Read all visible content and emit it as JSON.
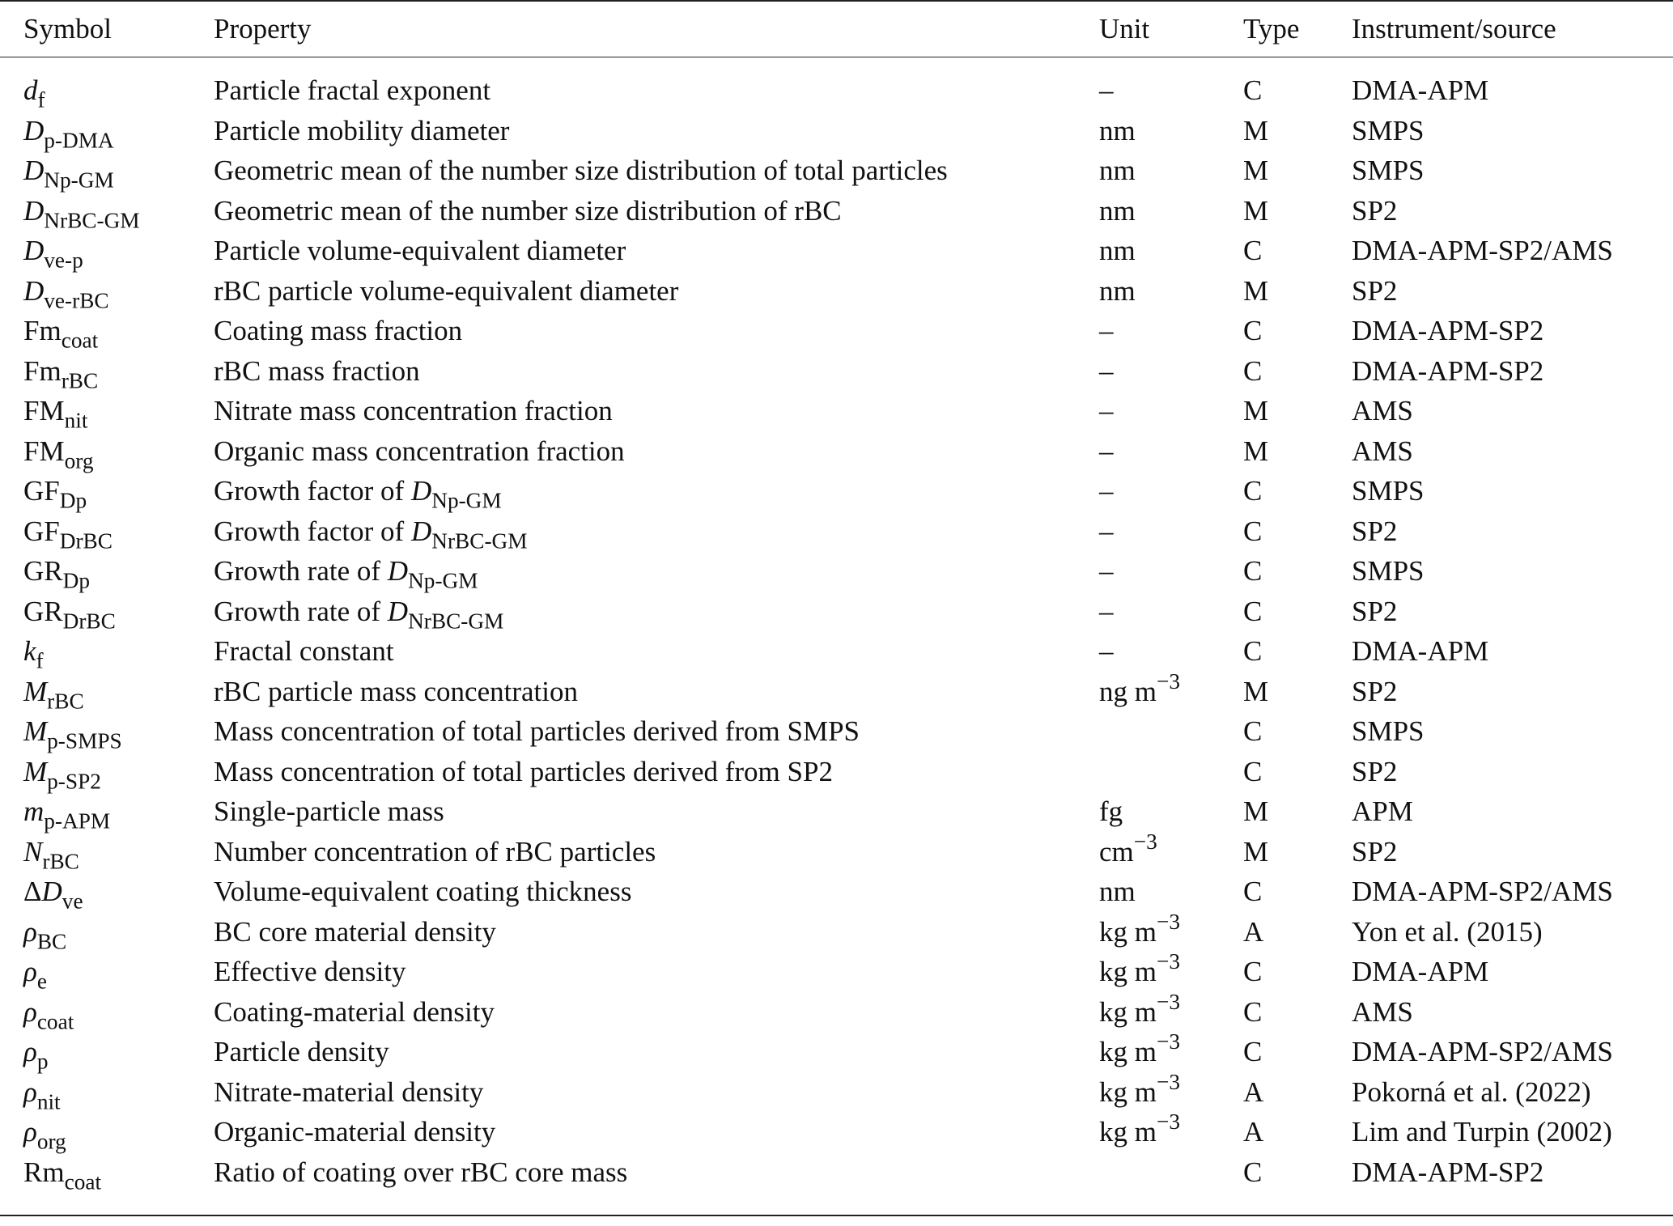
{
  "table": {
    "columns": [
      "Symbol",
      "Property",
      "Unit",
      "Type",
      "Instrument/source"
    ],
    "rows": [
      {
        "symbol": [
          {
            "i": "d"
          },
          {
            "sub": "f"
          }
        ],
        "property": "Particle fractal exponent",
        "unit": "–",
        "type": "C",
        "source": "DMA-APM"
      },
      {
        "symbol": [
          {
            "i": "D"
          },
          {
            "sub": "p-DMA"
          }
        ],
        "property": "Particle mobility diameter",
        "unit": "nm",
        "type": "M",
        "source": "SMPS"
      },
      {
        "symbol": [
          {
            "i": "D"
          },
          {
            "sub": "Np-GM"
          }
        ],
        "property": "Geometric mean of the number size distribution of total particles",
        "unit": "nm",
        "type": "M",
        "source": "SMPS"
      },
      {
        "symbol": [
          {
            "i": "D"
          },
          {
            "sub": "NrBC-GM"
          }
        ],
        "property": "Geometric mean of the number size distribution of rBC",
        "unit": "nm",
        "type": "M",
        "source": "SP2"
      },
      {
        "symbol": [
          {
            "i": "D"
          },
          {
            "sub": "ve-p"
          }
        ],
        "property": "Particle volume-equivalent diameter",
        "unit": "nm",
        "type": "C",
        "source": "DMA-APM-SP2/AMS"
      },
      {
        "symbol": [
          {
            "i": "D"
          },
          {
            "sub": "ve-rBC"
          }
        ],
        "property": "rBC particle volume-equivalent diameter",
        "unit": "nm",
        "type": "M",
        "source": "SP2"
      },
      {
        "symbol": [
          "Fm",
          {
            "sub": "coat"
          }
        ],
        "property": "Coating mass fraction",
        "unit": "–",
        "type": "C",
        "source": "DMA-APM-SP2"
      },
      {
        "symbol": [
          "Fm",
          {
            "sub": "rBC"
          }
        ],
        "property": "rBC mass fraction",
        "unit": "–",
        "type": "C",
        "source": "DMA-APM-SP2"
      },
      {
        "symbol": [
          "FM",
          {
            "sub": "nit"
          }
        ],
        "property": "Nitrate mass concentration fraction",
        "unit": "–",
        "type": "M",
        "source": "AMS"
      },
      {
        "symbol": [
          "FM",
          {
            "sub": "org"
          }
        ],
        "property": "Organic mass concentration fraction",
        "unit": "–",
        "type": "M",
        "source": "AMS"
      },
      {
        "symbol": [
          "GF",
          {
            "sub": "Dp"
          }
        ],
        "property": [
          "Growth factor of ",
          {
            "i": "D"
          },
          {
            "sub": "Np-GM"
          }
        ],
        "unit": "–",
        "type": "C",
        "source": "SMPS"
      },
      {
        "symbol": [
          "GF",
          {
            "sub": "DrBC"
          }
        ],
        "property": [
          "Growth factor of ",
          {
            "i": "D"
          },
          {
            "sub": "NrBC-GM"
          }
        ],
        "unit": "–",
        "type": "C",
        "source": "SP2"
      },
      {
        "symbol": [
          "GR",
          {
            "sub": "Dp"
          }
        ],
        "property": [
          "Growth rate of ",
          {
            "i": "D"
          },
          {
            "sub": "Np-GM"
          }
        ],
        "unit": "–",
        "type": "C",
        "source": "SMPS"
      },
      {
        "symbol": [
          "GR",
          {
            "sub": "DrBC"
          }
        ],
        "property": [
          "Growth rate of ",
          {
            "i": "D"
          },
          {
            "sub": "NrBC-GM"
          }
        ],
        "unit": "–",
        "type": "C",
        "source": "SP2"
      },
      {
        "symbol": [
          {
            "i": "k"
          },
          {
            "sub": "f"
          }
        ],
        "property": "Fractal constant",
        "unit": "–",
        "type": "C",
        "source": "DMA-APM"
      },
      {
        "symbol": [
          {
            "i": "M"
          },
          {
            "sub": "rBC"
          }
        ],
        "property": "rBC particle mass concentration",
        "unit": [
          "ng m",
          {
            "sup": "−3"
          }
        ],
        "type": "M",
        "source": "SP2"
      },
      {
        "symbol": [
          {
            "i": "M"
          },
          {
            "sub": "p-SMPS"
          }
        ],
        "property": "Mass concentration of total particles derived from SMPS",
        "unit": null,
        "type": "C",
        "source": "SMPS"
      },
      {
        "symbol": [
          {
            "i": "M"
          },
          {
            "sub": "p-SP2"
          }
        ],
        "property": "Mass concentration of total particles derived from SP2",
        "unit": null,
        "type": "C",
        "source": "SP2"
      },
      {
        "symbol": [
          {
            "i": "m"
          },
          {
            "sub": "p-APM"
          }
        ],
        "property": "Single-particle mass",
        "unit": "fg",
        "type": "M",
        "source": "APM"
      },
      {
        "symbol": [
          {
            "i": "N"
          },
          {
            "sub": "rBC"
          }
        ],
        "property": "Number concentration of rBC particles",
        "unit": [
          "cm",
          {
            "sup": "−3"
          }
        ],
        "type": "M",
        "source": "SP2"
      },
      {
        "symbol": [
          "Δ",
          {
            "i": "D"
          },
          {
            "sub": "ve"
          }
        ],
        "property": "Volume-equivalent coating thickness",
        "unit": "nm",
        "type": "C",
        "source": "DMA-APM-SP2/AMS"
      },
      {
        "symbol": [
          {
            "i": "ρ"
          },
          {
            "sub": "BC"
          }
        ],
        "property": "BC core material density",
        "unit": [
          "kg m",
          {
            "sup": "−3"
          }
        ],
        "type": "A",
        "source": "Yon et al. (2015)"
      },
      {
        "symbol": [
          {
            "i": "ρ"
          },
          {
            "sub": "e"
          }
        ],
        "property": "Effective density",
        "unit": [
          "kg m",
          {
            "sup": "−3"
          }
        ],
        "type": "C",
        "source": "DMA-APM"
      },
      {
        "symbol": [
          {
            "i": "ρ"
          },
          {
            "sub": "coat"
          }
        ],
        "property": "Coating-material density",
        "unit": [
          "kg m",
          {
            "sup": "−3"
          }
        ],
        "type": "C",
        "source": "AMS"
      },
      {
        "symbol": [
          {
            "i": "ρ"
          },
          {
            "sub": "p"
          }
        ],
        "property": "Particle density",
        "unit": [
          "kg m",
          {
            "sup": "−3"
          }
        ],
        "type": "C",
        "source": "DMA-APM-SP2/AMS"
      },
      {
        "symbol": [
          {
            "i": "ρ"
          },
          {
            "sub": "nit"
          }
        ],
        "property": "Nitrate-material density",
        "unit": [
          "kg m",
          {
            "sup": "−3"
          }
        ],
        "type": "A",
        "source": "Pokorná et al. (2022)"
      },
      {
        "symbol": [
          {
            "i": "ρ"
          },
          {
            "sub": "org"
          }
        ],
        "property": "Organic-material density",
        "unit": [
          "kg m",
          {
            "sup": "−3"
          }
        ],
        "type": "A",
        "source": "Lim and Turpin (2002)"
      },
      {
        "symbol": [
          "Rm",
          {
            "sub": "coat"
          }
        ],
        "property": "Ratio of coating over rBC core mass",
        "unit": null,
        "type": "C",
        "source": "DMA-APM-SP2"
      }
    ]
  }
}
